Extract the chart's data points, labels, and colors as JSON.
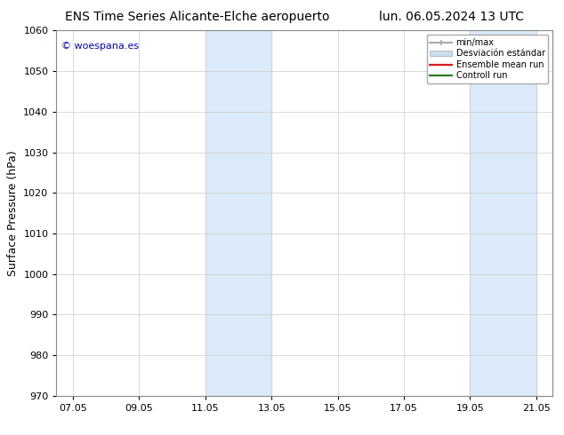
{
  "title_left": "ENS Time Series Alicante-Elche aeropuerto",
  "title_right": "lun. 06.05.2024 13 UTC",
  "ylabel": "Surface Pressure (hPa)",
  "ylim": [
    970,
    1060
  ],
  "yticks": [
    970,
    980,
    990,
    1000,
    1010,
    1020,
    1030,
    1040,
    1050,
    1060
  ],
  "xtick_labels": [
    "07.05",
    "09.05",
    "11.05",
    "13.05",
    "15.05",
    "17.05",
    "19.05",
    "21.05"
  ],
  "xtick_positions": [
    0,
    2,
    4,
    6,
    8,
    10,
    12,
    14
  ],
  "xlim": [
    -0.5,
    14.5
  ],
  "shade_bands": [
    {
      "x_start": 4.0,
      "x_end": 5.0,
      "color": "#daeaf8"
    },
    {
      "x_start": 5.0,
      "x_end": 6.0,
      "color": "#daeaf8"
    },
    {
      "x_start": 12.0,
      "x_end": 13.0,
      "color": "#daeaf8"
    },
    {
      "x_start": 13.0,
      "x_end": 14.0,
      "color": "#daeaf8"
    }
  ],
  "watermark_text": "© woespana.es",
  "watermark_color": "#0000cc",
  "legend_entries": [
    {
      "label": "min/max",
      "color": "#aaaaaa",
      "lw": 1.5,
      "type": "line"
    },
    {
      "label": "Desviación estándar",
      "color": "#c8dff0",
      "lw": 8,
      "type": "patch"
    },
    {
      "label": "Ensemble mean run",
      "color": "#ff0000",
      "lw": 1.5,
      "type": "line"
    },
    {
      "label": "Controll run",
      "color": "#008000",
      "lw": 1.5,
      "type": "line"
    }
  ],
  "bg_color": "#ffffff",
  "plot_bg_color": "#ffffff",
  "grid_color": "#cccccc",
  "title_fontsize": 10,
  "axis_label_fontsize": 9,
  "tick_fontsize": 8,
  "watermark_fontsize": 8
}
